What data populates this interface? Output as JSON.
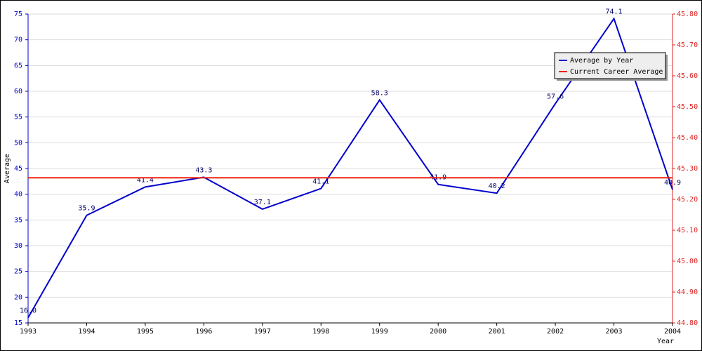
{
  "chart_data": {
    "type": "line",
    "x": [
      1993,
      1994,
      1995,
      1996,
      1997,
      1998,
      1999,
      2000,
      2001,
      2002,
      2003,
      2004
    ],
    "xlim": [
      1993,
      2004
    ],
    "xticks": [
      1993,
      1994,
      1995,
      1996,
      1997,
      1998,
      1999,
      2000,
      2001,
      2002,
      2003,
      2004
    ],
    "xlabel": "Year",
    "ylabel": "Average",
    "ylim": [
      15,
      75
    ],
    "yticks": [
      15,
      20,
      25,
      30,
      35,
      40,
      45,
      50,
      55,
      60,
      65,
      70,
      75
    ],
    "y2lim": [
      44.8,
      45.8
    ],
    "y2ticks": [
      {
        "value": 44.8,
        "label": "44.80"
      },
      {
        "value": 44.9,
        "label": "44.90"
      },
      {
        "value": 45.0,
        "label": "45.00"
      },
      {
        "value": 45.1,
        "label": "45.10"
      },
      {
        "value": 45.2,
        "label": "45.20"
      },
      {
        "value": 45.3,
        "label": "45.30"
      },
      {
        "value": 45.4,
        "label": "45.40"
      },
      {
        "value": 45.5,
        "label": "45.50"
      },
      {
        "value": 45.6,
        "label": "45.60"
      },
      {
        "value": 45.7,
        "label": "45.70"
      },
      {
        "value": 45.8,
        "label": "45.80"
      }
    ],
    "grid": true,
    "legend": "top-right",
    "series": [
      {
        "name": "Average by Year",
        "color": "#0000cc",
        "values": [
          16.0,
          35.9,
          41.4,
          43.3,
          37.1,
          41.1,
          58.3,
          41.9,
          40.2,
          57.6,
          74.1,
          40.9
        ],
        "value_labels": [
          "16.0",
          "35.9",
          "41.4",
          "43.3",
          "37.1",
          "41.1",
          "58.3",
          "41.9",
          "40.2",
          "57.6",
          "74.1",
          "40.9"
        ]
      },
      {
        "name": "Current Career Average",
        "color": "#ee2211",
        "axis": "y2",
        "values": [
          45.27,
          45.27,
          45.27,
          45.27,
          45.27,
          45.27,
          45.27,
          45.27,
          45.27,
          45.27,
          45.27,
          45.27
        ]
      }
    ]
  }
}
